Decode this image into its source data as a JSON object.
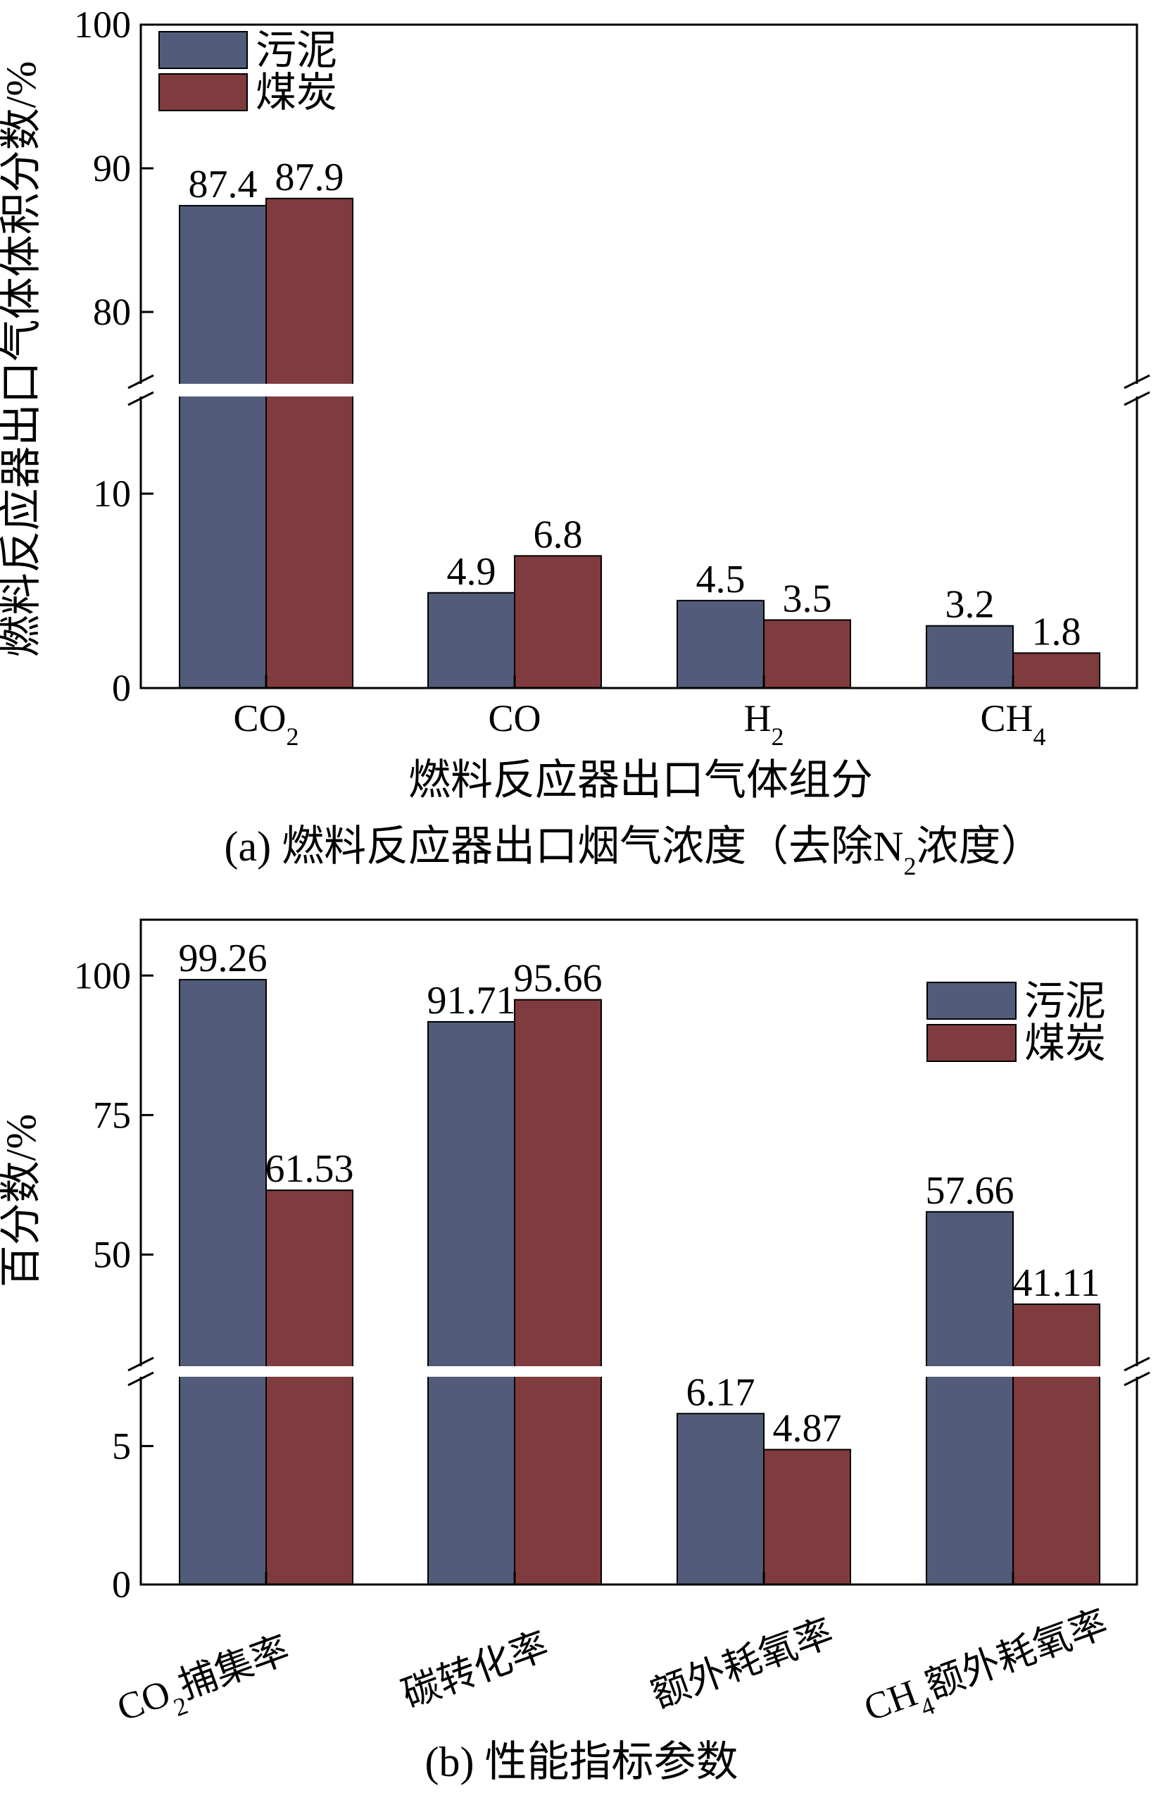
{
  "colors": {
    "sludge": "#525c7a",
    "coal": "#7f3b3e"
  },
  "chart_data": [
    {
      "type": "bar",
      "caption": "(a) 燃料反应器出口烟气浓度（去除N₂浓度）",
      "xlabel": "燃料反应器出口气体组分",
      "ylabel": "燃料反应器出口气体体积分数/%",
      "categories": [
        "CO₂",
        "CO",
        "H₂",
        "CH₄"
      ],
      "series": [
        {
          "name": "污泥",
          "values": [
            87.4,
            4.9,
            4.5,
            3.2
          ],
          "labels": [
            "87.4",
            "4.9",
            "4.5",
            "3.2"
          ]
        },
        {
          "name": "煤炭",
          "values": [
            87.9,
            6.8,
            3.5,
            1.8
          ],
          "labels": [
            "87.9",
            "6.8",
            "3.5",
            "1.8"
          ]
        }
      ],
      "axis_break": {
        "lower": [
          0,
          15
        ],
        "upper": [
          75,
          100
        ]
      },
      "yticks": [
        0,
        10,
        80,
        90,
        100
      ],
      "ytick_labels": [
        "0",
        "10",
        "80",
        "90",
        "100"
      ],
      "legend": "top-left"
    },
    {
      "type": "bar",
      "caption": "(b) 性能指标参数",
      "xlabel": "",
      "ylabel": "百分数/%",
      "categories": [
        "CO₂捕集率",
        "碳转化率",
        "额外耗氧率",
        "CH₄额外耗氧率"
      ],
      "series": [
        {
          "name": "污泥",
          "values": [
            99.26,
            91.71,
            6.17,
            57.66
          ],
          "labels": [
            "99.26",
            "91.71",
            "6.17",
            "57.66"
          ]
        },
        {
          "name": "煤炭",
          "values": [
            61.53,
            95.66,
            4.87,
            41.11
          ],
          "labels": [
            "61.53",
            "95.66",
            "4.87",
            "41.11"
          ]
        }
      ],
      "axis_break": {
        "lower": [
          0,
          7.5
        ],
        "upper": [
          30,
          110
        ]
      },
      "yticks": [
        0,
        5,
        50,
        75,
        100
      ],
      "ytick_labels": [
        "0",
        "5",
        "50",
        "75",
        "100"
      ],
      "legend": "top-right"
    }
  ]
}
